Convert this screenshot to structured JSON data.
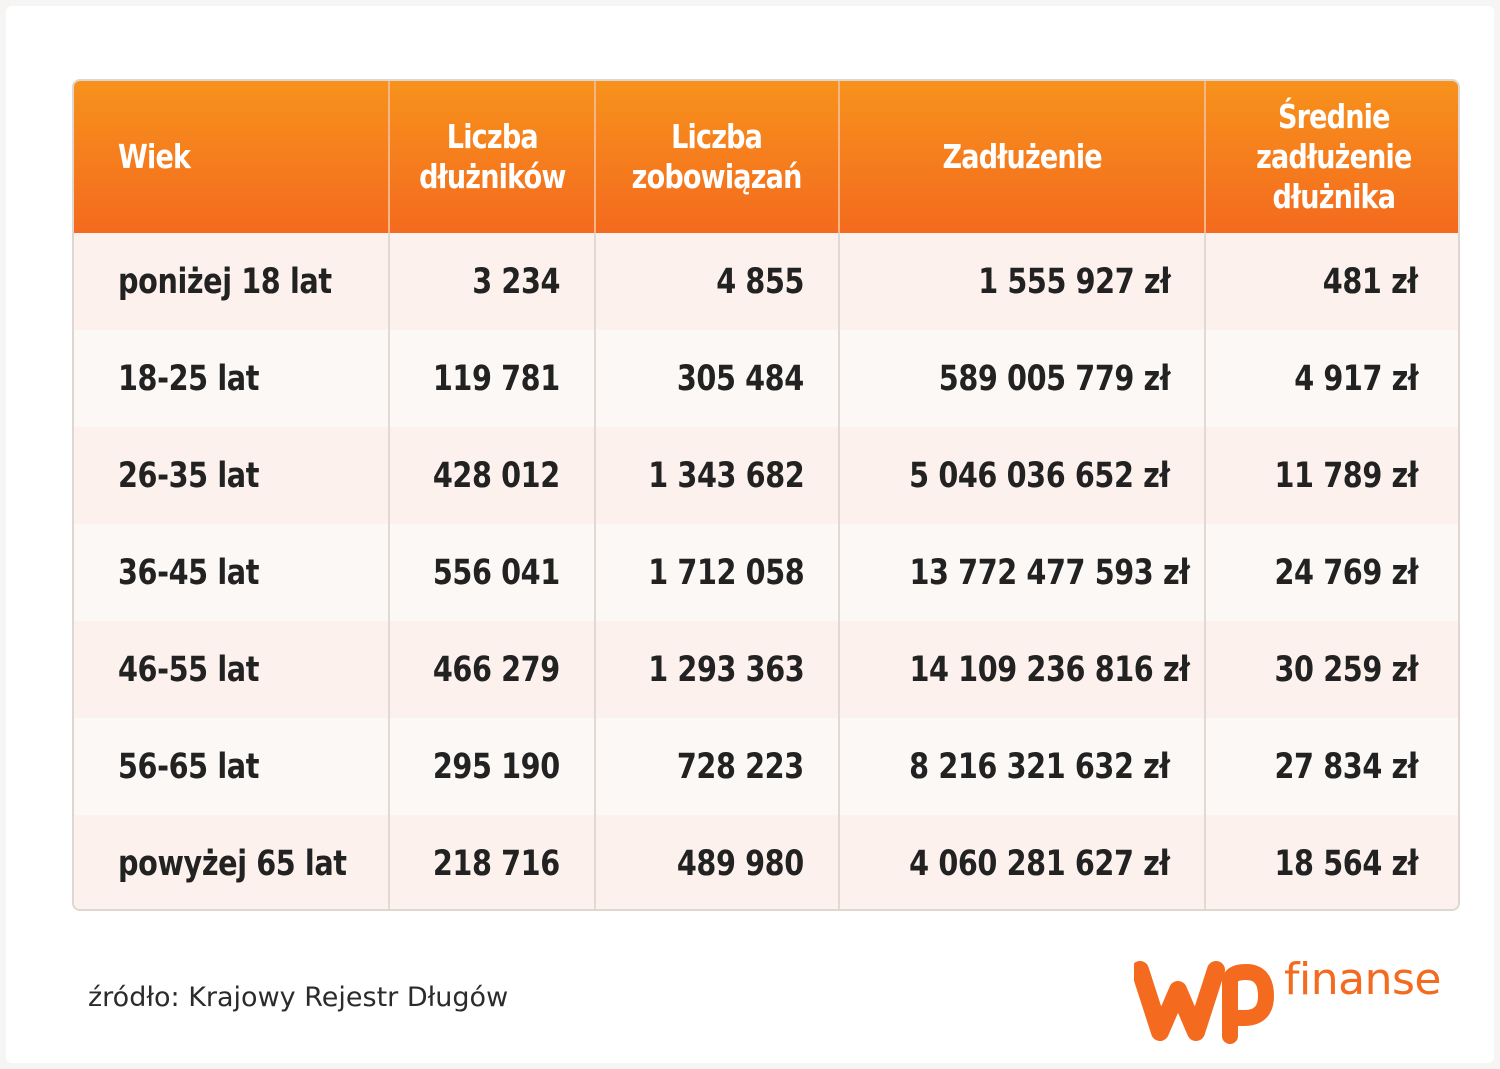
{
  "chart_data": {
    "type": "table",
    "columns": [
      "Wiek",
      "Liczba dłużników",
      "Liczba zobowiązań",
      "Zadłużenie",
      "Średnie zadłużenie dłużnika"
    ],
    "rows": [
      [
        "poniżej 18 lat",
        "3 234",
        "4 855",
        "1 555 927 zł",
        "481 zł"
      ],
      [
        "18-25 lat",
        "119 781",
        "305 484",
        "589 005 779 zł",
        "4 917 zł"
      ],
      [
        "26-35 lat",
        "428 012",
        "1 343 682",
        "5 046 036 652 zł",
        "11 789 zł"
      ],
      [
        "36-45 lat",
        "556 041",
        "1 712 058",
        "13 772 477 593 zł",
        "24 769 zł"
      ],
      [
        "46-55 lat",
        "466 279",
        "1 293 363",
        "14 109 236 816 zł",
        "30 259 zł"
      ],
      [
        "56-65 lat",
        "295 190",
        "728 223",
        "8 216 321 632 zł",
        "27 834 zł"
      ],
      [
        "powyżej 65 lat",
        "218 716",
        "489 980",
        "4 060 281 627 zł",
        "18 564 zł"
      ]
    ]
  },
  "source": "źródło: Krajowy Rejestr Długów",
  "brand": {
    "logo_icon": "wp-logo-icon",
    "name": "finanse",
    "color": "#f46a1e"
  },
  "colors": {
    "header_top": "#f7921c",
    "header_bottom": "#f46a1e",
    "row_odd": "#fdf1ed",
    "row_even": "#fbf8f6"
  }
}
